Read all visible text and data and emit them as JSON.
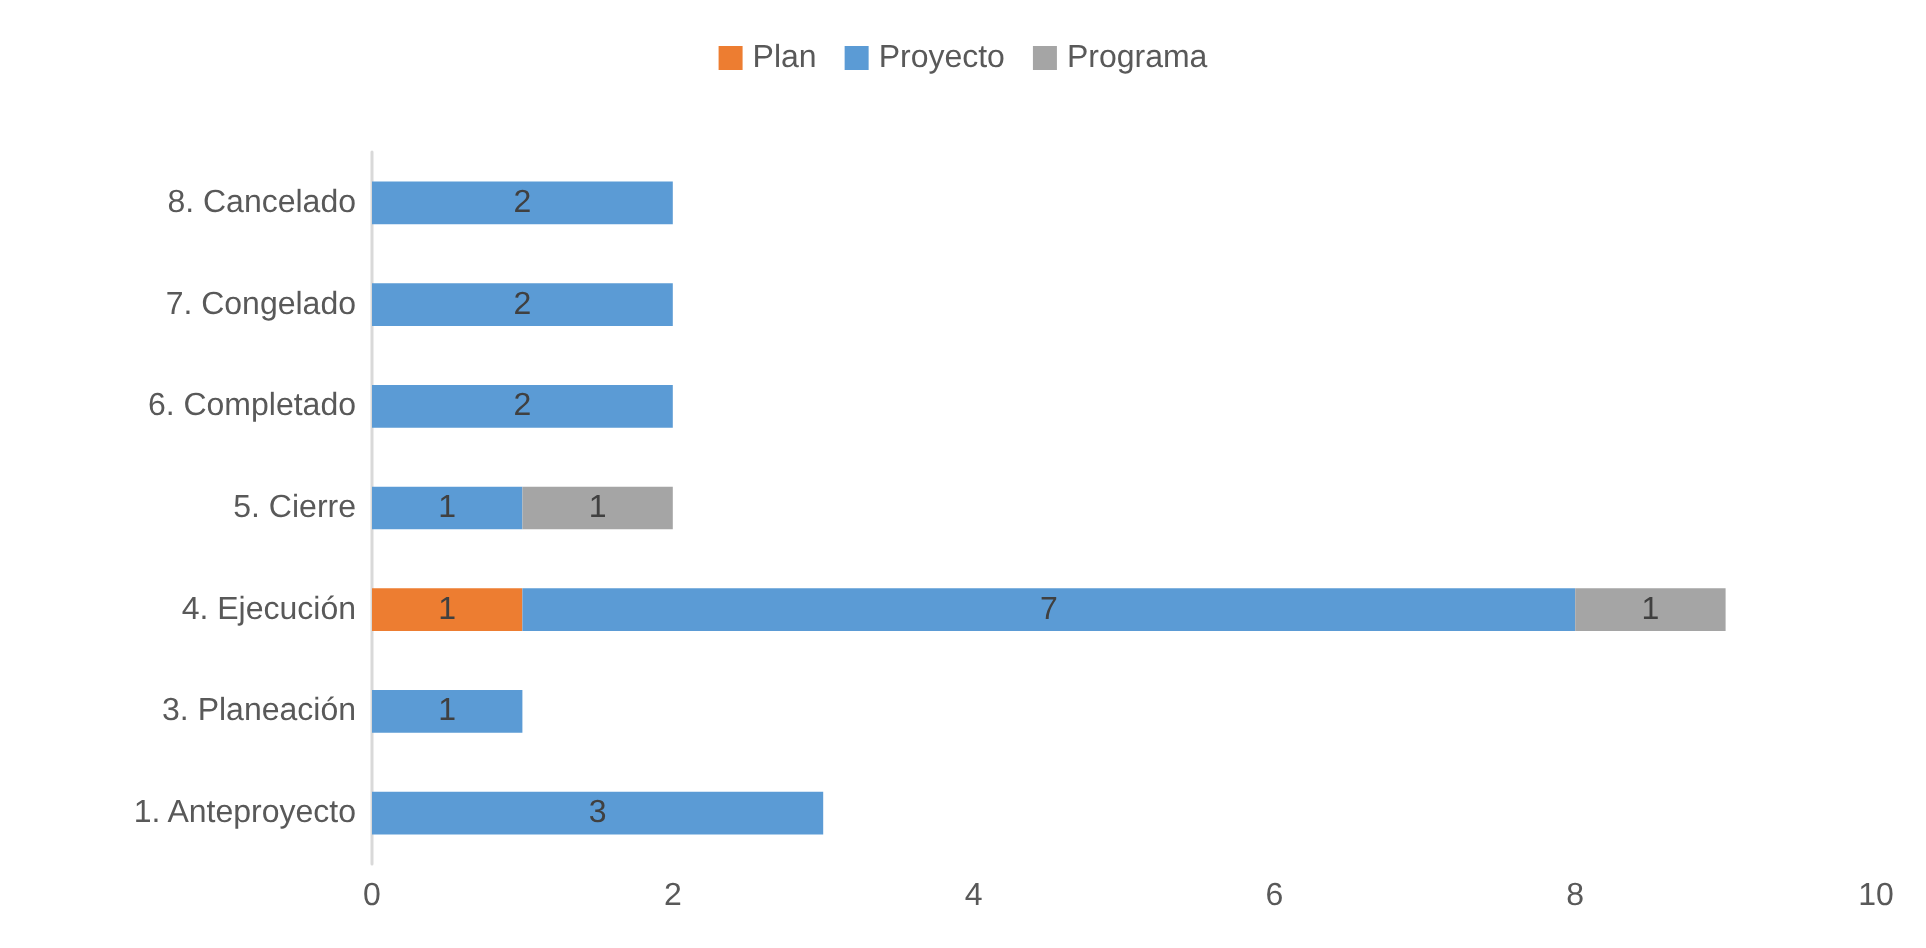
{
  "chart_data": {
    "type": "bar",
    "orientation": "horizontal",
    "stacked": true,
    "categories": [
      "8. Cancelado",
      "7. Congelado",
      "6. Completado",
      "5. Cierre",
      "4. Ejecución",
      "3. Planeación",
      "1. Anteproyecto"
    ],
    "series": [
      {
        "name": "Plan",
        "color": "#ed7d31",
        "values": [
          null,
          null,
          null,
          null,
          1,
          null,
          null
        ]
      },
      {
        "name": "Proyecto",
        "color": "#5b9bd5",
        "values": [
          2,
          2,
          2,
          1,
          7,
          1,
          3
        ]
      },
      {
        "name": "Programa",
        "color": "#a5a5a5",
        "values": [
          null,
          null,
          null,
          1,
          1,
          null,
          null
        ]
      }
    ],
    "xlim": [
      0,
      10
    ],
    "xticks": [
      0,
      2,
      4,
      6,
      8,
      10
    ],
    "grid": false,
    "legend": "top",
    "data_labels": true
  }
}
